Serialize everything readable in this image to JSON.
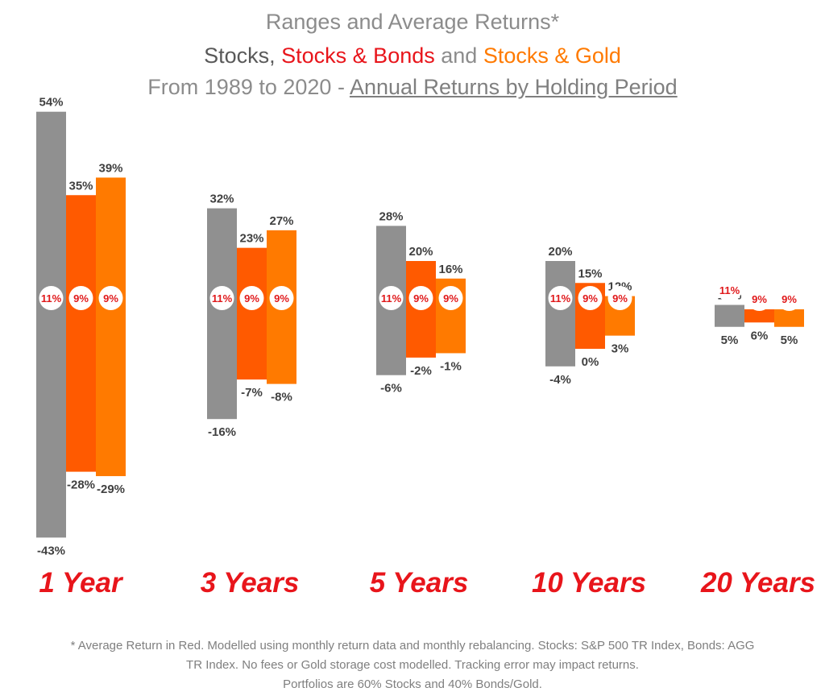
{
  "colors": {
    "stocks": "#909090",
    "stocks_bonds": "#ff5a00",
    "stocks_gold": "#ff7a00",
    "avg_text": "#e0191b"
  },
  "header": {
    "line1": "Ranges and Average Returns*",
    "line2": {
      "stocks": "Stocks",
      "sep1": ", ",
      "stocks_bonds": "Stocks & Bonds",
      "sep2": " and ",
      "stocks_gold": "Stocks & Gold"
    },
    "line3": {
      "prefix": "From 1989 to 2020 - ",
      "underlined": "Annual Returns by Holding Period"
    }
  },
  "chart_data": {
    "type": "bar",
    "subtype": "floating-range",
    "categories": [
      "1 Year",
      "3 Years",
      "5 Years",
      "10 Years",
      "20 Years"
    ],
    "series": [
      {
        "name": "Stocks",
        "max": [
          54,
          32,
          28,
          20,
          10
        ],
        "min": [
          -43,
          -16,
          -6,
          -4,
          5
        ],
        "avg": [
          11,
          11,
          11,
          11,
          11
        ]
      },
      {
        "name": "Stocks & Bonds",
        "max": [
          35,
          23,
          20,
          15,
          9
        ],
        "min": [
          -28,
          -7,
          -2,
          0,
          6
        ],
        "avg": [
          9,
          9,
          9,
          9,
          9
        ]
      },
      {
        "name": "Stocks & Gold",
        "max": [
          39,
          27,
          16,
          12,
          9
        ],
        "min": [
          -29,
          -8,
          -1,
          3,
          5
        ],
        "avg": [
          9,
          9,
          9,
          9,
          9
        ]
      }
    ],
    "unit": "%",
    "grid": false
  },
  "footnote": {
    "line1": "* Average Return in Red. Modelled using monthly return data and monthly rebalancing. Stocks: S&P 500 TR Index, Bonds: AGG",
    "line2": "TR Index. No fees or Gold storage cost modelled.  Tracking error may impact returns.",
    "line3": "Portfolios are 60% Stocks and 40% Bonds/Gold."
  }
}
